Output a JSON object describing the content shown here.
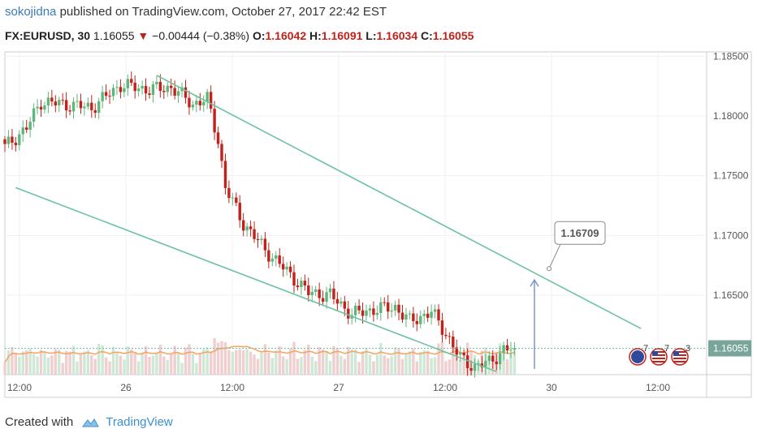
{
  "header": {
    "author": "sokojidna",
    "published": "published on TradingView.com, October 27, 2017 22:42 EST",
    "symbol": "FX:EURUSD, 30",
    "price": "1.16055",
    "change_arrow": "▼",
    "change": "−0.00444 (−0.38%)",
    "o_label": "O:",
    "o_value": "1.16042",
    "h_label": "H:",
    "h_value": "1.16091",
    "l_label": "L:",
    "l_value": "1.16034",
    "c_label": "C:",
    "c_value": "1.16055"
  },
  "footer": {
    "created_with": "Created with",
    "brand": "TradingView",
    "logo_icon": "tradingview-cloud-icon"
  },
  "colors": {
    "up": "#5fb67a",
    "down": "#c3221b",
    "trend": "#6cc3a0",
    "ma": "#f4a460",
    "callout_arrow": "#7b97c8",
    "price_label": "#7aa59a"
  },
  "chart_data": {
    "type": "candlestick",
    "instrument": "FX:EURUSD",
    "timeframe": "30",
    "x_ticks": [
      "12:00",
      "26",
      "12:00",
      "27",
      "12:00",
      "30",
      "12:00"
    ],
    "y_ticks": [
      "1.18500",
      "1.18000",
      "1.17500",
      "1.17000",
      "1.16500",
      "1.16055"
    ],
    "ylim": [
      1.1595,
      1.1855
    ],
    "last_price": 1.16055,
    "last_price_label": "1.16055",
    "callout": {
      "label": "1.16709",
      "value": 1.16709
    },
    "close_path": [
      {
        "bar": 0,
        "close": 1.1774
      },
      {
        "bar": 6,
        "close": 1.179
      },
      {
        "bar": 10,
        "close": 1.1812
      },
      {
        "bar": 16,
        "close": 1.181
      },
      {
        "bar": 24,
        "close": 1.1807
      },
      {
        "bar": 32,
        "close": 1.1826
      },
      {
        "bar": 40,
        "close": 1.1822
      },
      {
        "bar": 46,
        "close": 1.1824
      },
      {
        "bar": 52,
        "close": 1.181
      },
      {
        "bar": 56,
        "close": 1.1814
      },
      {
        "bar": 59,
        "close": 1.178
      },
      {
        "bar": 61,
        "close": 1.174
      },
      {
        "bar": 66,
        "close": 1.171
      },
      {
        "bar": 72,
        "close": 1.1688
      },
      {
        "bar": 78,
        "close": 1.167
      },
      {
        "bar": 84,
        "close": 1.1652
      },
      {
        "bar": 90,
        "close": 1.165
      },
      {
        "bar": 96,
        "close": 1.1634
      },
      {
        "bar": 102,
        "close": 1.1638
      },
      {
        "bar": 108,
        "close": 1.164
      },
      {
        "bar": 112,
        "close": 1.1628
      },
      {
        "bar": 118,
        "close": 1.1636
      },
      {
        "bar": 122,
        "close": 1.1618
      },
      {
        "bar": 126,
        "close": 1.1597
      },
      {
        "bar": 130,
        "close": 1.159
      },
      {
        "bar": 134,
        "close": 1.1594
      },
      {
        "bar": 138,
        "close": 1.1604
      },
      {
        "bar": 141,
        "close": 1.16055
      }
    ],
    "trendlines": [
      {
        "name": "upper",
        "from": {
          "bar": 42,
          "price": 1.1834
        },
        "to": {
          "bar": 176,
          "price": 1.1622
        }
      },
      {
        "name": "lower",
        "from": {
          "bar": 3,
          "price": 1.174
        },
        "to": {
          "bar": 136,
          "price": 1.1586
        }
      }
    ],
    "event_badges": [
      {
        "icon": "eu-flag-icon",
        "count": "7"
      },
      {
        "icon": "us-flag-icon",
        "count": "7"
      },
      {
        "icon": "us-flag-icon",
        "count": "3"
      }
    ]
  }
}
